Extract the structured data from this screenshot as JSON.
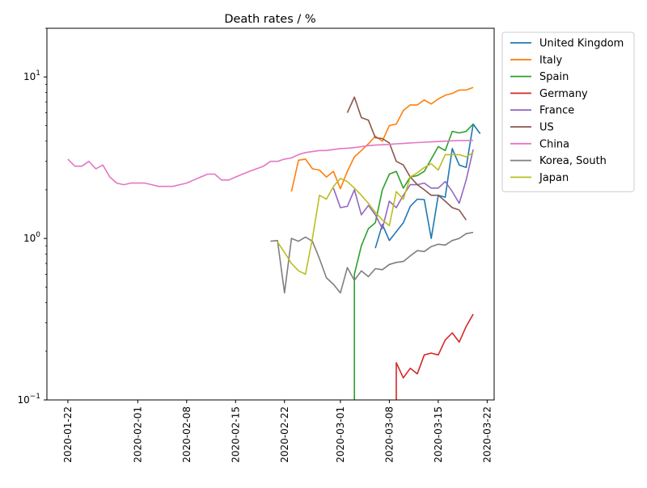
{
  "chart_data": {
    "type": "line",
    "title": "Death rates / %",
    "xlabel": "",
    "ylabel": "",
    "x_scale": "date",
    "y_scale": "log",
    "xlim": [
      "2020-01-19",
      "2020-03-23"
    ],
    "ylim": [
      0.1,
      20
    ],
    "x_ticks": [
      "2020-01-22",
      "2020-02-01",
      "2020-02-08",
      "2020-02-15",
      "2020-02-22",
      "2020-03-01",
      "2020-03-08",
      "2020-03-15",
      "2020-03-22"
    ],
    "y_ticks": [
      {
        "value": 0.1,
        "base": "10",
        "exp": "−1"
      },
      {
        "value": 1,
        "base": "10",
        "exp": "0"
      },
      {
        "value": 10,
        "base": "10",
        "exp": "1"
      }
    ],
    "grid": false,
    "legend_position": "outside-top-right",
    "series": [
      {
        "name": "United Kingdom",
        "color": "#1f77b4",
        "points": [
          [
            "2020-03-06",
            0.87
          ],
          [
            "2020-03-07",
            1.22
          ],
          [
            "2020-03-08",
            0.97
          ],
          [
            "2020-03-09",
            1.1
          ],
          [
            "2020-03-10",
            1.25
          ],
          [
            "2020-03-11",
            1.58
          ],
          [
            "2020-03-12",
            1.75
          ],
          [
            "2020-03-13",
            1.74
          ],
          [
            "2020-03-14",
            1.0
          ],
          [
            "2020-03-15",
            1.85
          ],
          [
            "2020-03-16",
            1.8
          ],
          [
            "2020-03-17",
            3.6
          ],
          [
            "2020-03-18",
            2.85
          ],
          [
            "2020-03-19",
            2.75
          ],
          [
            "2020-03-20",
            5.1
          ],
          [
            "2020-03-21",
            4.45
          ]
        ]
      },
      {
        "name": "Italy",
        "color": "#ff7f0e",
        "points": [
          [
            "2020-02-23",
            1.95
          ],
          [
            "2020-02-24",
            3.05
          ],
          [
            "2020-02-25",
            3.1
          ],
          [
            "2020-02-26",
            2.7
          ],
          [
            "2020-02-27",
            2.65
          ],
          [
            "2020-02-28",
            2.4
          ],
          [
            "2020-02-29",
            2.6
          ],
          [
            "2020-03-01",
            2.03
          ],
          [
            "2020-03-02",
            2.6
          ],
          [
            "2020-03-03",
            3.2
          ],
          [
            "2020-03-04",
            3.5
          ],
          [
            "2020-03-05",
            3.85
          ],
          [
            "2020-03-06",
            4.3
          ],
          [
            "2020-03-07",
            4.0
          ],
          [
            "2020-03-08",
            5.0
          ],
          [
            "2020-03-09",
            5.1
          ],
          [
            "2020-03-10",
            6.2
          ],
          [
            "2020-03-11",
            6.7
          ],
          [
            "2020-03-12",
            6.7
          ],
          [
            "2020-03-13",
            7.2
          ],
          [
            "2020-03-14",
            6.8
          ],
          [
            "2020-03-15",
            7.3
          ],
          [
            "2020-03-16",
            7.7
          ],
          [
            "2020-03-17",
            7.9
          ],
          [
            "2020-03-18",
            8.3
          ],
          [
            "2020-03-19",
            8.3
          ],
          [
            "2020-03-20",
            8.6
          ]
        ]
      },
      {
        "name": "Spain",
        "color": "#2ca02c",
        "points": [
          [
            "2020-03-03",
            0.06
          ],
          [
            "2020-03-03",
            0.6
          ],
          [
            "2020-03-04",
            0.9
          ],
          [
            "2020-03-05",
            1.15
          ],
          [
            "2020-03-06",
            1.25
          ],
          [
            "2020-03-07",
            2.0
          ],
          [
            "2020-03-08",
            2.5
          ],
          [
            "2020-03-09",
            2.6
          ],
          [
            "2020-03-10",
            2.05
          ],
          [
            "2020-03-11",
            2.4
          ],
          [
            "2020-03-12",
            2.45
          ],
          [
            "2020-03-13",
            2.6
          ],
          [
            "2020-03-14",
            3.1
          ],
          [
            "2020-03-15",
            3.7
          ],
          [
            "2020-03-16",
            3.5
          ],
          [
            "2020-03-17",
            4.6
          ],
          [
            "2020-03-18",
            4.5
          ],
          [
            "2020-03-19",
            4.6
          ],
          [
            "2020-03-20",
            5.1
          ]
        ]
      },
      {
        "name": "Germany",
        "color": "#d62728",
        "points": [
          [
            "2020-03-09",
            0.05
          ],
          [
            "2020-03-09",
            0.17
          ],
          [
            "2020-03-10",
            0.137
          ],
          [
            "2020-03-11",
            0.157
          ],
          [
            "2020-03-12",
            0.145
          ],
          [
            "2020-03-13",
            0.19
          ],
          [
            "2020-03-14",
            0.195
          ],
          [
            "2020-03-15",
            0.19
          ],
          [
            "2020-03-16",
            0.235
          ],
          [
            "2020-03-17",
            0.26
          ],
          [
            "2020-03-18",
            0.228
          ],
          [
            "2020-03-19",
            0.285
          ],
          [
            "2020-03-20",
            0.34
          ]
        ]
      },
      {
        "name": "France",
        "color": "#9467bd",
        "points": [
          [
            "2020-02-29",
            2.05
          ],
          [
            "2020-03-01",
            1.55
          ],
          [
            "2020-03-02",
            1.58
          ],
          [
            "2020-03-03",
            2.0
          ],
          [
            "2020-03-04",
            1.4
          ],
          [
            "2020-03-05",
            1.6
          ],
          [
            "2020-03-06",
            1.4
          ],
          [
            "2020-03-07",
            1.15
          ],
          [
            "2020-03-08",
            1.7
          ],
          [
            "2020-03-09",
            1.55
          ],
          [
            "2020-03-10",
            1.85
          ],
          [
            "2020-03-11",
            2.15
          ],
          [
            "2020-03-12",
            2.15
          ],
          [
            "2020-03-13",
            2.2
          ],
          [
            "2020-03-14",
            2.05
          ],
          [
            "2020-03-15",
            2.05
          ],
          [
            "2020-03-16",
            2.25
          ],
          [
            "2020-03-17",
            1.95
          ],
          [
            "2020-03-18",
            1.65
          ],
          [
            "2020-03-19",
            2.3
          ],
          [
            "2020-03-20",
            3.55
          ]
        ]
      },
      {
        "name": "US",
        "color": "#8c564b",
        "points": [
          [
            "2020-03-02",
            6.0
          ],
          [
            "2020-03-03",
            7.5
          ],
          [
            "2020-03-04",
            5.6
          ],
          [
            "2020-03-05",
            5.4
          ],
          [
            "2020-03-06",
            4.2
          ],
          [
            "2020-03-07",
            4.15
          ],
          [
            "2020-03-08",
            3.9
          ],
          [
            "2020-03-09",
            3.0
          ],
          [
            "2020-03-10",
            2.85
          ],
          [
            "2020-03-11",
            2.4
          ],
          [
            "2020-03-12",
            2.15
          ],
          [
            "2020-03-13",
            2.0
          ],
          [
            "2020-03-14",
            1.85
          ],
          [
            "2020-03-15",
            1.85
          ],
          [
            "2020-03-16",
            1.7
          ],
          [
            "2020-03-17",
            1.55
          ],
          [
            "2020-03-18",
            1.5
          ],
          [
            "2020-03-19",
            1.3
          ]
        ]
      },
      {
        "name": "China",
        "color": "#e377c2",
        "points": [
          [
            "2020-01-22",
            3.1
          ],
          [
            "2020-01-23",
            2.8
          ],
          [
            "2020-01-24",
            2.8
          ],
          [
            "2020-01-25",
            3.0
          ],
          [
            "2020-01-26",
            2.7
          ],
          [
            "2020-01-27",
            2.85
          ],
          [
            "2020-01-28",
            2.4
          ],
          [
            "2020-01-29",
            2.2
          ],
          [
            "2020-01-30",
            2.15
          ],
          [
            "2020-01-31",
            2.2
          ],
          [
            "2020-02-01",
            2.2
          ],
          [
            "2020-02-02",
            2.2
          ],
          [
            "2020-02-03",
            2.15
          ],
          [
            "2020-02-04",
            2.1
          ],
          [
            "2020-02-05",
            2.1
          ],
          [
            "2020-02-06",
            2.1
          ],
          [
            "2020-02-07",
            2.15
          ],
          [
            "2020-02-08",
            2.2
          ],
          [
            "2020-02-09",
            2.3
          ],
          [
            "2020-02-10",
            2.4
          ],
          [
            "2020-02-11",
            2.5
          ],
          [
            "2020-02-12",
            2.5
          ],
          [
            "2020-02-13",
            2.3
          ],
          [
            "2020-02-14",
            2.3
          ],
          [
            "2020-02-15",
            2.4
          ],
          [
            "2020-02-16",
            2.5
          ],
          [
            "2020-02-17",
            2.6
          ],
          [
            "2020-02-18",
            2.7
          ],
          [
            "2020-02-19",
            2.8
          ],
          [
            "2020-02-20",
            3.0
          ],
          [
            "2020-02-21",
            3.0
          ],
          [
            "2020-02-22",
            3.1
          ],
          [
            "2020-02-23",
            3.15
          ],
          [
            "2020-02-24",
            3.3
          ],
          [
            "2020-02-25",
            3.4
          ],
          [
            "2020-02-26",
            3.45
          ],
          [
            "2020-02-27",
            3.5
          ],
          [
            "2020-02-28",
            3.5
          ],
          [
            "2020-02-29",
            3.55
          ],
          [
            "2020-03-01",
            3.6
          ],
          [
            "2020-03-02",
            3.62
          ],
          [
            "2020-03-03",
            3.65
          ],
          [
            "2020-03-04",
            3.7
          ],
          [
            "2020-03-05",
            3.75
          ],
          [
            "2020-03-06",
            3.78
          ],
          [
            "2020-03-07",
            3.8
          ],
          [
            "2020-03-08",
            3.82
          ],
          [
            "2020-03-09",
            3.85
          ],
          [
            "2020-03-10",
            3.87
          ],
          [
            "2020-03-11",
            3.9
          ],
          [
            "2020-03-12",
            3.92
          ],
          [
            "2020-03-13",
            3.94
          ],
          [
            "2020-03-14",
            3.96
          ],
          [
            "2020-03-15",
            3.98
          ],
          [
            "2020-03-16",
            4.0
          ],
          [
            "2020-03-17",
            4.02
          ],
          [
            "2020-03-18",
            4.04
          ],
          [
            "2020-03-19",
            4.04
          ],
          [
            "2020-03-20",
            4.05
          ]
        ]
      },
      {
        "name": "Korea, South",
        "color": "#7f7f7f",
        "points": [
          [
            "2020-02-20",
            0.96
          ],
          [
            "2020-02-21",
            0.97
          ],
          [
            "2020-02-22",
            0.46
          ],
          [
            "2020-02-23",
            1.0
          ],
          [
            "2020-02-24",
            0.96
          ],
          [
            "2020-02-25",
            1.02
          ],
          [
            "2020-02-26",
            0.96
          ],
          [
            "2020-02-27",
            0.75
          ],
          [
            "2020-02-28",
            0.57
          ],
          [
            "2020-02-29",
            0.52
          ],
          [
            "2020-03-01",
            0.46
          ],
          [
            "2020-03-02",
            0.66
          ],
          [
            "2020-03-03",
            0.55
          ],
          [
            "2020-03-04",
            0.63
          ],
          [
            "2020-03-05",
            0.58
          ],
          [
            "2020-03-06",
            0.65
          ],
          [
            "2020-03-07",
            0.64
          ],
          [
            "2020-03-08",
            0.69
          ],
          [
            "2020-03-09",
            0.71
          ],
          [
            "2020-03-10",
            0.72
          ],
          [
            "2020-03-11",
            0.78
          ],
          [
            "2020-03-12",
            0.84
          ],
          [
            "2020-03-13",
            0.83
          ],
          [
            "2020-03-14",
            0.89
          ],
          [
            "2020-03-15",
            0.92
          ],
          [
            "2020-03-16",
            0.91
          ],
          [
            "2020-03-17",
            0.97
          ],
          [
            "2020-03-18",
            1.0
          ],
          [
            "2020-03-19",
            1.07
          ],
          [
            "2020-03-20",
            1.09
          ]
        ]
      },
      {
        "name": "Japan",
        "color": "#bcbd22",
        "points": [
          [
            "2020-02-21",
            0.95
          ],
          [
            "2020-02-22",
            0.82
          ],
          [
            "2020-02-23",
            0.7
          ],
          [
            "2020-02-24",
            0.63
          ],
          [
            "2020-02-25",
            0.6
          ],
          [
            "2020-02-26",
            1.0
          ],
          [
            "2020-02-27",
            1.85
          ],
          [
            "2020-02-28",
            1.75
          ],
          [
            "2020-02-29",
            2.1
          ],
          [
            "2020-03-01",
            2.35
          ],
          [
            "2020-03-02",
            2.25
          ],
          [
            "2020-03-03",
            2.05
          ],
          [
            "2020-03-04",
            1.85
          ],
          [
            "2020-03-05",
            1.65
          ],
          [
            "2020-03-06",
            1.45
          ],
          [
            "2020-03-07",
            1.3
          ],
          [
            "2020-03-08",
            1.2
          ],
          [
            "2020-03-09",
            1.95
          ],
          [
            "2020-03-10",
            1.75
          ],
          [
            "2020-03-11",
            2.4
          ],
          [
            "2020-03-12",
            2.55
          ],
          [
            "2020-03-13",
            2.75
          ],
          [
            "2020-03-14",
            2.9
          ],
          [
            "2020-03-15",
            2.65
          ],
          [
            "2020-03-16",
            3.3
          ],
          [
            "2020-03-17",
            3.3
          ],
          [
            "2020-03-18",
            3.3
          ],
          [
            "2020-03-19",
            3.2
          ],
          [
            "2020-03-20",
            3.4
          ]
        ]
      }
    ]
  }
}
